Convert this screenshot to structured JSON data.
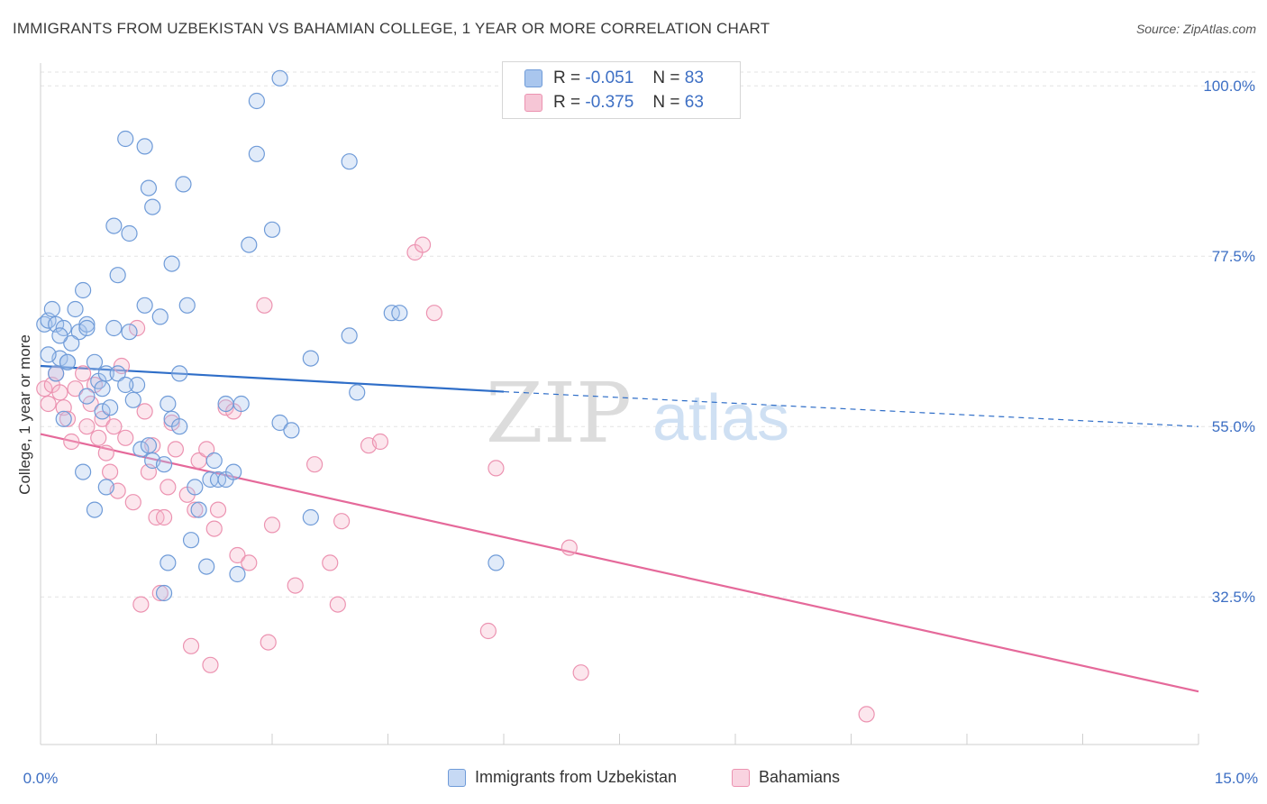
{
  "header": {
    "title": "IMMIGRANTS FROM UZBEKISTAN VS BAHAMIAN COLLEGE, 1 YEAR OR MORE CORRELATION CHART",
    "source": "Source: ZipAtlas.com"
  },
  "watermark": {
    "zip": "ZIP",
    "atlas": "atlas"
  },
  "legend": {
    "rows": [
      {
        "r_label": "R =",
        "r_value": "-0.051",
        "n_label": "N =",
        "n_value": "83"
      },
      {
        "r_label": "R =",
        "r_value": "-0.375",
        "n_label": "N =",
        "n_value": "63"
      }
    ]
  },
  "bottom_legend": {
    "series1": "Immigrants from Uzbekistan",
    "series2": "Bahamians"
  },
  "colors": {
    "blue_fill": "#a9c6ee",
    "blue_stroke": "#6f9bd8",
    "blue_line": "#2f6ec8",
    "pink_fill": "#f6b6cb",
    "pink_stroke": "#ec93b1",
    "pink_line": "#e5699a",
    "tick_label": "#3d6fc4"
  },
  "chart_data": {
    "type": "scatter",
    "title": "IMMIGRANTS FROM UZBEKISTAN VS BAHAMIAN COLLEGE, 1 YEAR OR MORE CORRELATION CHART",
    "xlabel": "",
    "ylabel": "College, 1 year or more",
    "xlim": [
      0,
      15
    ],
    "ylim": [
      13,
      103
    ],
    "x_tick_labels": [
      "0.0%",
      "15.0%"
    ],
    "y_ticks": [
      32.5,
      55.0,
      77.5,
      100.0
    ],
    "y_tick_labels": [
      "32.5%",
      "55.0%",
      "77.5%",
      "100.0%"
    ],
    "grid": true,
    "legend_position": "top-center",
    "series": [
      {
        "name": "Immigrants from Uzbekistan",
        "color": "#a9c6ee",
        "R": -0.051,
        "N": 83,
        "trend": {
          "x": [
            0,
            6.0
          ],
          "y": [
            63.0,
            59.6
          ],
          "dashed_to": [
            15,
            55.0
          ]
        },
        "points": [
          [
            0.05,
            68.5
          ],
          [
            0.1,
            69
          ],
          [
            0.15,
            70.5
          ],
          [
            0.2,
            68.5
          ],
          [
            0.25,
            64
          ],
          [
            0.3,
            68
          ],
          [
            0.1,
            64.5
          ],
          [
            0.35,
            63.5
          ],
          [
            0.45,
            70.5
          ],
          [
            0.55,
            73
          ],
          [
            0.3,
            56
          ],
          [
            0.35,
            63.5
          ],
          [
            0.5,
            67.5
          ],
          [
            0.6,
            68.5
          ],
          [
            0.7,
            63.5
          ],
          [
            0.75,
            61
          ],
          [
            0.8,
            57
          ],
          [
            0.9,
            57.5
          ],
          [
            0.95,
            68
          ],
          [
            1.0,
            75
          ],
          [
            0.55,
            49
          ],
          [
            0.6,
            68
          ],
          [
            0.85,
            47
          ],
          [
            0.95,
            81.5
          ],
          [
            1.1,
            93
          ],
          [
            1.15,
            67.5
          ],
          [
            1.15,
            80.5
          ],
          [
            1.2,
            58.5
          ],
          [
            1.25,
            60.5
          ],
          [
            1.3,
            52
          ],
          [
            1.35,
            71
          ],
          [
            1.4,
            52.5
          ],
          [
            1.45,
            50.5
          ],
          [
            1.35,
            92
          ],
          [
            1.4,
            86.5
          ],
          [
            1.45,
            84
          ],
          [
            1.55,
            69.5
          ],
          [
            1.6,
            33
          ],
          [
            1.65,
            37
          ],
          [
            1.7,
            76.5
          ],
          [
            1.65,
            58
          ],
          [
            1.7,
            56
          ],
          [
            1.8,
            55
          ],
          [
            1.85,
            87
          ],
          [
            1.9,
            71
          ],
          [
            1.95,
            40
          ],
          [
            2.0,
            47
          ],
          [
            2.05,
            44
          ],
          [
            2.15,
            36.5
          ],
          [
            2.2,
            48
          ],
          [
            2.25,
            50.5
          ],
          [
            2.3,
            48
          ],
          [
            2.4,
            48
          ],
          [
            2.5,
            49
          ],
          [
            2.55,
            35.5
          ],
          [
            2.6,
            58
          ],
          [
            2.7,
            79
          ],
          [
            2.8,
            91
          ],
          [
            3.1,
            101
          ],
          [
            3.1,
            55.5
          ],
          [
            3.25,
            54.5
          ],
          [
            3.5,
            64
          ],
          [
            3.5,
            43
          ],
          [
            4.0,
            90
          ],
          [
            4.0,
            67
          ],
          [
            4.1,
            59.5
          ],
          [
            4.55,
            70
          ],
          [
            4.65,
            70
          ],
          [
            5.9,
            37
          ],
          [
            0.85,
            62
          ],
          [
            0.6,
            59
          ],
          [
            0.8,
            60
          ],
          [
            1.0,
            62
          ],
          [
            1.1,
            60.5
          ],
          [
            2.4,
            58
          ],
          [
            1.6,
            50
          ],
          [
            1.8,
            62
          ],
          [
            2.8,
            98
          ],
          [
            3.0,
            81
          ],
          [
            0.7,
            44
          ],
          [
            0.2,
            62
          ],
          [
            0.4,
            66
          ],
          [
            0.25,
            67
          ]
        ]
      },
      {
        "name": "Bahamians",
        "color": "#f6b6cb",
        "R": -0.375,
        "N": 63,
        "trend": {
          "x": [
            0,
            15
          ],
          "y": [
            54.0,
            20.0
          ]
        },
        "points": [
          [
            0.05,
            60
          ],
          [
            0.1,
            58
          ],
          [
            0.15,
            60.5
          ],
          [
            0.2,
            62
          ],
          [
            0.3,
            57.5
          ],
          [
            0.35,
            56
          ],
          [
            0.4,
            53
          ],
          [
            0.45,
            60
          ],
          [
            0.55,
            62
          ],
          [
            0.6,
            55
          ],
          [
            0.7,
            60.5
          ],
          [
            0.75,
            53.5
          ],
          [
            0.8,
            56
          ],
          [
            0.85,
            51.5
          ],
          [
            0.9,
            49
          ],
          [
            0.95,
            55
          ],
          [
            1.0,
            46.5
          ],
          [
            1.1,
            53.5
          ],
          [
            1.2,
            45
          ],
          [
            1.25,
            68
          ],
          [
            1.3,
            31.5
          ],
          [
            1.35,
            57
          ],
          [
            1.4,
            49
          ],
          [
            1.45,
            52.5
          ],
          [
            1.5,
            43
          ],
          [
            1.55,
            33
          ],
          [
            1.6,
            43
          ],
          [
            1.65,
            47
          ],
          [
            1.7,
            55.5
          ],
          [
            1.75,
            52
          ],
          [
            1.9,
            46
          ],
          [
            1.95,
            26
          ],
          [
            2.0,
            44
          ],
          [
            2.05,
            50.5
          ],
          [
            2.15,
            52
          ],
          [
            2.2,
            23.5
          ],
          [
            2.25,
            41.5
          ],
          [
            2.3,
            44
          ],
          [
            2.4,
            57.5
          ],
          [
            2.5,
            57
          ],
          [
            2.55,
            38
          ],
          [
            2.7,
            37
          ],
          [
            2.9,
            71
          ],
          [
            2.95,
            26.5
          ],
          [
            3.0,
            42
          ],
          [
            3.3,
            34
          ],
          [
            3.55,
            50
          ],
          [
            3.75,
            37
          ],
          [
            3.85,
            31.5
          ],
          [
            3.9,
            42.5
          ],
          [
            4.25,
            52.5
          ],
          [
            4.4,
            53
          ],
          [
            4.85,
            78
          ],
          [
            4.95,
            79
          ],
          [
            5.1,
            70
          ],
          [
            5.8,
            28
          ],
          [
            5.9,
            49.5
          ],
          [
            6.85,
            39
          ],
          [
            7.0,
            22.5
          ],
          [
            10.7,
            17
          ],
          [
            0.25,
            59.5
          ],
          [
            0.65,
            58
          ],
          [
            1.05,
            63
          ]
        ]
      }
    ]
  }
}
